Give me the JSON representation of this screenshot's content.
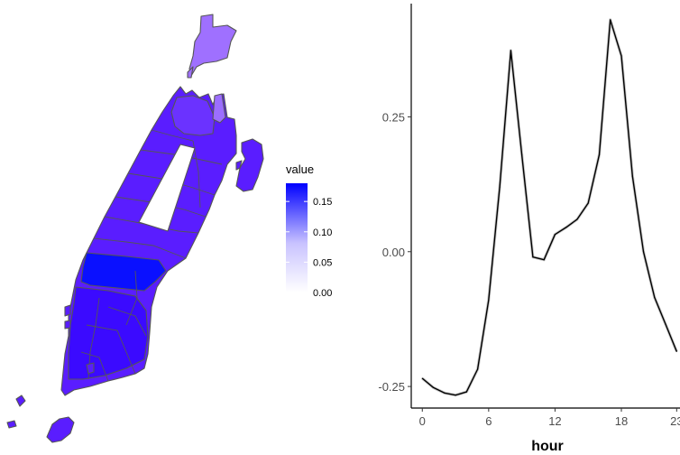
{
  "chart_data": [
    {
      "type": "choropleth",
      "legend": {
        "title": "value",
        "ticks": [
          "0.00",
          "0.05",
          "0.10",
          "0.15"
        ],
        "low_color": "#ffffff",
        "high_color": "#0000ff",
        "range": [
          0,
          0.18
        ]
      },
      "border_color": "#555555"
    },
    {
      "type": "line",
      "xlabel": "hour",
      "ylabel": "",
      "x_ticks": [
        0,
        6,
        12,
        18,
        23
      ],
      "y_ticks": [
        -0.25,
        0.0,
        0.25
      ],
      "y_tick_labels": [
        "-0.25",
        "0.00",
        "0.25"
      ],
      "xlim": [
        -1,
        23.3
      ],
      "ylim": [
        -0.29,
        0.46
      ],
      "grid": false,
      "series": [
        {
          "color": "#000000",
          "x": [
            0,
            1,
            2,
            3,
            4,
            5,
            6,
            7,
            8,
            9,
            10,
            11,
            12,
            13,
            14,
            15,
            16,
            17,
            18,
            19,
            20,
            21,
            22,
            23
          ],
          "values": [
            -0.235,
            -0.252,
            -0.262,
            -0.266,
            -0.26,
            -0.218,
            -0.09,
            0.12,
            0.373,
            0.18,
            -0.01,
            -0.015,
            0.032,
            0.045,
            0.06,
            0.09,
            0.18,
            0.43,
            0.363,
            0.14,
            0.0,
            -0.085,
            -0.135,
            -0.185
          ]
        }
      ]
    }
  ]
}
